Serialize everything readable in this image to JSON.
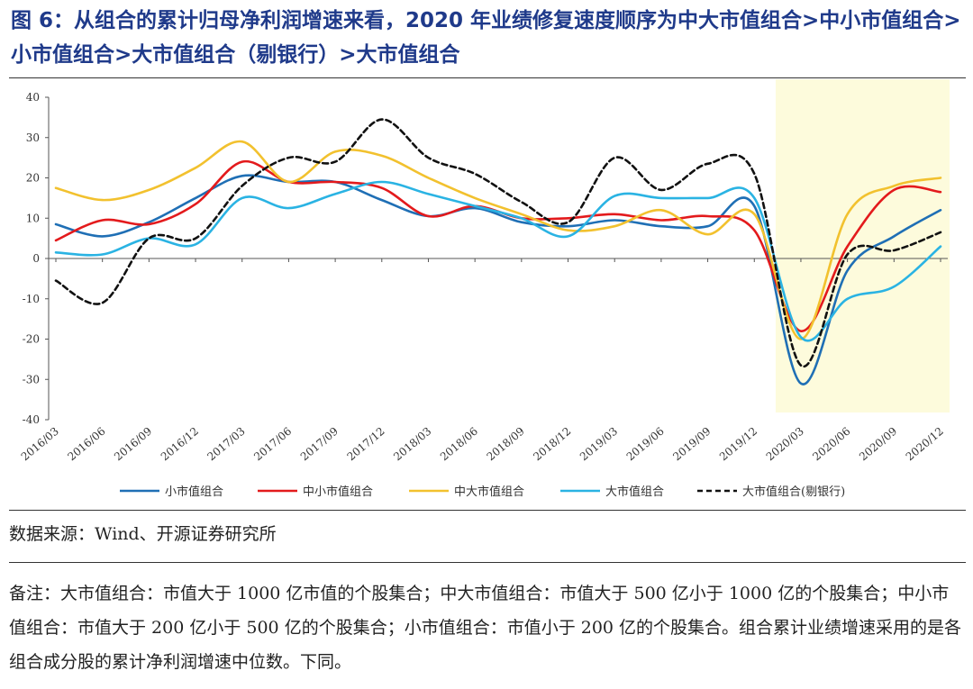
{
  "header": {
    "title": "图 6：从组合的累计归母净利润增速来看，2020 年业绩修复速度顺序为中大市值组合>中小市值组合>小市值组合>大市值组合（剔银行）>大市值组合"
  },
  "footer": {
    "source": "数据来源：Wind、开源证券研究所",
    "remark": "备注：大市值组合：市值大于 1000 亿市值的个股集合；中大市值组合：市值大于 500 亿小于 1000 亿的个股集合；中小市值组合：市值大于 200 亿小于 500 亿的个股集合；小市值组合：市值小于 200 亿的个股集合。组合累计业绩增速采用的是各组合成分股的累计净利润增速中位数。下同。"
  },
  "chart_data": {
    "type": "line",
    "categories": [
      "2016/03",
      "2016/06",
      "2016/09",
      "2016/12",
      "2017/03",
      "2017/06",
      "2017/09",
      "2017/12",
      "2018/03",
      "2018/06",
      "2018/09",
      "2018/12",
      "2019/03",
      "2019/06",
      "2019/09",
      "2019/12",
      "2020/03",
      "2020/06",
      "2020/09",
      "2020/12"
    ],
    "ylim": [
      -40,
      40
    ],
    "yticks": [
      -40,
      -30,
      -20,
      -10,
      0,
      10,
      20,
      30,
      40
    ],
    "highlight_range": [
      "2020/03",
      "2020/12"
    ],
    "highlight_color": "#fdfbdc",
    "legend_position": "bottom",
    "series": [
      {
        "name": "小市值组合",
        "color": "#1f6fb5",
        "dash": false,
        "values": [
          8.5,
          5.5,
          9,
          15,
          20.5,
          19,
          19,
          14.5,
          10.5,
          12.5,
          9,
          8,
          9.5,
          8,
          8,
          13,
          -31,
          -3,
          5.5,
          12
        ]
      },
      {
        "name": "中小市值组合",
        "color": "#e31a1c",
        "dash": false,
        "values": [
          4.5,
          9.5,
          8.5,
          13.5,
          24,
          19,
          19,
          17.5,
          10.5,
          13,
          10,
          10,
          11,
          9.5,
          10.5,
          7,
          -18,
          3,
          17,
          16.5
        ]
      },
      {
        "name": "中大市值组合",
        "color": "#f2c12e",
        "dash": false,
        "values": [
          17.5,
          14.5,
          17,
          22.5,
          29,
          19,
          26.5,
          25.5,
          20,
          15,
          11,
          7,
          8,
          12,
          6,
          11,
          -20,
          11,
          18,
          20
        ]
      },
      {
        "name": "大市值组合",
        "color": "#2ab3e3",
        "dash": false,
        "values": [
          1.5,
          1,
          5,
          3.5,
          15,
          12.5,
          16,
          19,
          16,
          13,
          10,
          5.5,
          15.5,
          15,
          15,
          15,
          -19.5,
          -10,
          -7,
          3
        ]
      },
      {
        "name": "大市值组合(剔银行)",
        "color": "#111111",
        "dash": true,
        "values": [
          -5.5,
          -11,
          5,
          5,
          18,
          25,
          24,
          34.5,
          25,
          21,
          14,
          9,
          25,
          17,
          23.5,
          21,
          -26.5,
          1,
          2,
          6.5
        ]
      }
    ]
  }
}
